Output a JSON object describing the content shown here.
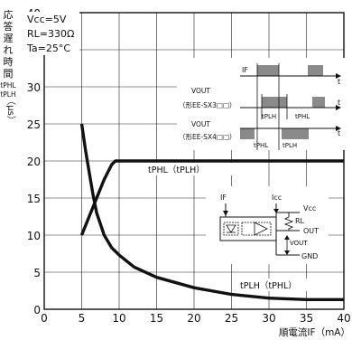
{
  "chart_data": {
    "type": "line",
    "ylabel_chars": [
      "応",
      "答",
      "遅",
      "れ",
      "時",
      "間"
    ],
    "ylabel_sub1": "tPHL",
    "ylabel_sub2": "tPLH",
    "ylabel_unit": "（μs）",
    "xlabel": "順電流IF（mA）",
    "xlim": [
      0,
      40
    ],
    "ylim": [
      0,
      40
    ],
    "x_ticks": [
      "0",
      "5",
      "10",
      "15",
      "20",
      "25",
      "30",
      "35",
      "40"
    ],
    "y_ticks": [
      "0",
      "5",
      "10",
      "15",
      "20",
      "25",
      "30",
      "35",
      "40"
    ],
    "grid": true,
    "conditions": [
      "Vcc=5V",
      "RL=330Ω",
      "Ta=25°C"
    ],
    "series": [
      {
        "name": "tPHL（tPLH）",
        "x": [
          5,
          6,
          7,
          8,
          9,
          9.5,
          10,
          12,
          15,
          20,
          25,
          30,
          35,
          40
        ],
        "y": [
          10,
          12.5,
          15,
          17.5,
          19.5,
          20,
          20,
          20,
          20,
          20,
          20,
          20,
          20,
          20
        ]
      },
      {
        "name": "tPLH（tPHL）",
        "x": [
          5,
          5.5,
          6,
          6.5,
          7,
          8,
          9,
          10,
          12,
          15,
          20,
          25,
          30,
          35,
          40
        ],
        "y": [
          25,
          21.5,
          18.5,
          15.5,
          13,
          10,
          8.3,
          7.3,
          5.7,
          4.3,
          2.9,
          2.0,
          1.5,
          1.3,
          1.3
        ]
      }
    ],
    "inset_timing": {
      "if_label": "IF",
      "t_label": "t",
      "vout1_label": "VOUT",
      "vout1_model": "（形EE-SX3□□）",
      "vout2_label": "VOUT",
      "vout2_model": "（形EE-SX4□□）",
      "tplh": "tPLH",
      "tphl": "tPHL"
    },
    "inset_circuit": {
      "if_label": "IF",
      "icc_label": "Icc",
      "vcc_label": "Vcc",
      "rl_label": "RL",
      "out_label": "OUT",
      "vout_label": "VOUT",
      "gnd_label": "GND"
    }
  }
}
